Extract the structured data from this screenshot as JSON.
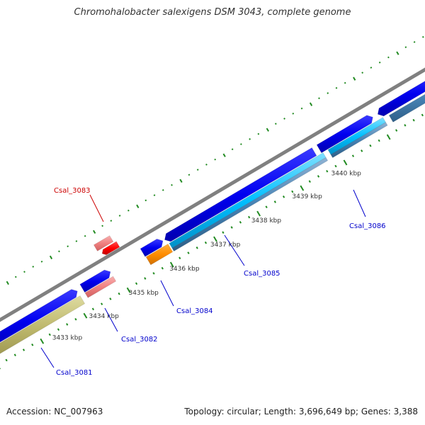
{
  "title": "Chromohalobacter salexigens DSM 3043, complete genome",
  "footer": {
    "accession": "Accession: NC_007963",
    "summary": "Topology: circular; Length: 3,696,649 bp; Genes: 3,388"
  },
  "colors": {
    "backbone": "#808080",
    "gene_blue": "#0000f0",
    "gene_blue_label": "#0000cc",
    "gene_red": "#ff0000",
    "gene_red_label": "#cc0000",
    "pink": "#f08080",
    "orange": "#ff8c00",
    "cyan": "#00bfff",
    "steelblue": "#4682b4",
    "khaki": "#bdb76b",
    "tick_green": "#228b22"
  },
  "ticks": [
    {
      "label": "3433 kbp"
    },
    {
      "label": "3434 kbp"
    },
    {
      "label": "3435 kbp"
    },
    {
      "label": "3436 kbp"
    },
    {
      "label": "3437 kbp"
    },
    {
      "label": "3438 kbp"
    },
    {
      "label": "3439 kbp"
    },
    {
      "label": "3440 kbp"
    }
  ],
  "gene_labels": [
    {
      "name": "Csal_3081",
      "color": "blue"
    },
    {
      "name": "Csal_3082",
      "color": "blue"
    },
    {
      "name": "Csal_3083",
      "color": "red"
    },
    {
      "name": "Csal_3084",
      "color": "blue"
    },
    {
      "name": "Csal_3085",
      "color": "blue"
    },
    {
      "name": "Csal_3086",
      "color": "blue"
    }
  ]
}
